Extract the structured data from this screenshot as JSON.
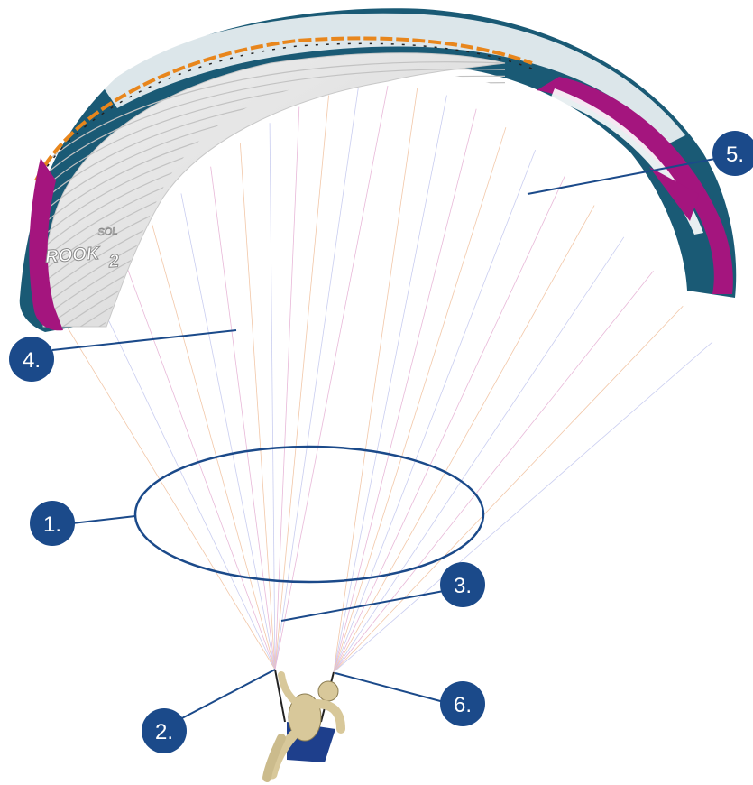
{
  "wing": {
    "logo_text": "ROOK",
    "logo_number": "2",
    "logo_brand": "SOL",
    "colors": {
      "leading_edge": "#1a5a75",
      "top_surface": "#ffffff",
      "bottom_surface": "#e4e4e4",
      "wingtip": "#a4157e",
      "stripe": "#e8861c",
      "pilot_body": "#d8c89a",
      "harness": "#1e3f8c",
      "callout": "#1b4a8a"
    }
  },
  "callouts": [
    {
      "id": "1",
      "label": "1."
    },
    {
      "id": "2",
      "label": "2."
    },
    {
      "id": "3",
      "label": "3."
    },
    {
      "id": "4",
      "label": "4."
    },
    {
      "id": "5",
      "label": "5."
    },
    {
      "id": "6",
      "label": "6."
    }
  ]
}
